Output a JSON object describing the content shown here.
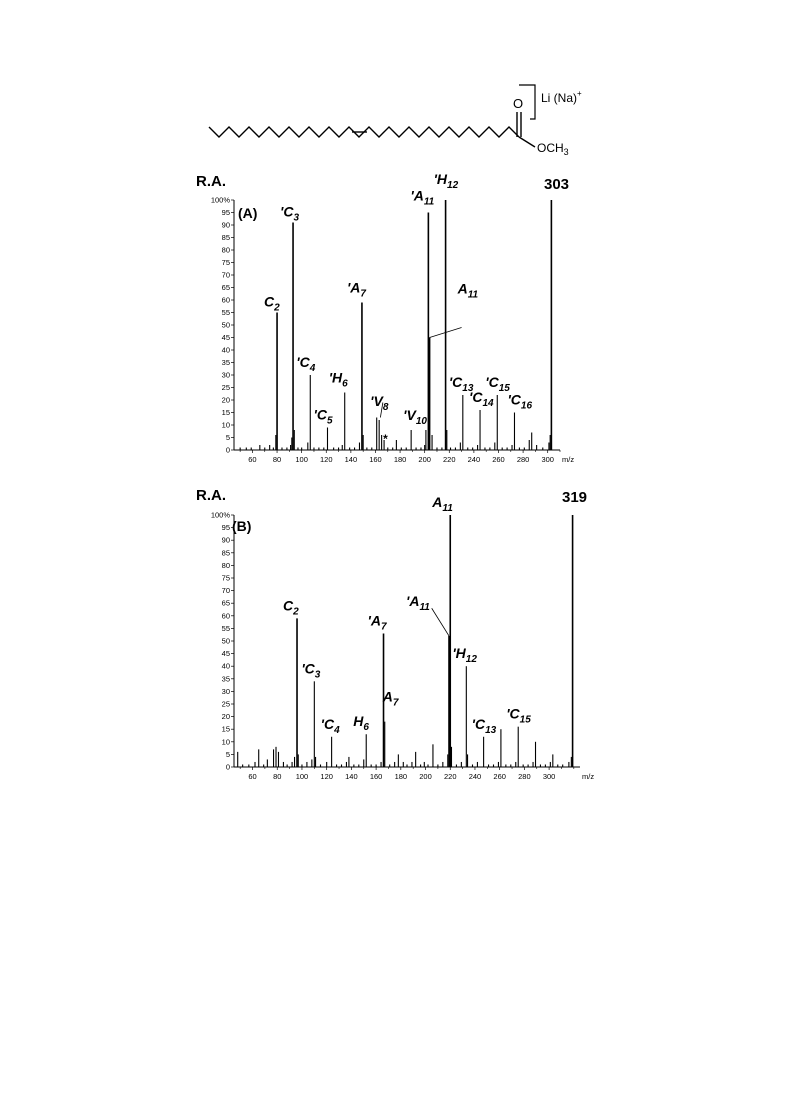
{
  "structure": {
    "cation_label": "Li (Na)",
    "cation_charge": "+",
    "carbonyl_O": "O",
    "ester_group": "OCH",
    "ester_sub": "3"
  },
  "chart_data": [
    {
      "type": "bar",
      "y_axis_title": "R.A.",
      "panel_label": "(A)",
      "parent_label": "303",
      "x_unit": "m/z",
      "xlim": [
        45,
        310
      ],
      "ylim": [
        0,
        100
      ],
      "x_ticks": [
        60,
        80,
        100,
        120,
        140,
        160,
        180,
        200,
        220,
        240,
        260,
        280,
        300
      ],
      "y_ticks": [
        0,
        5,
        10,
        15,
        20,
        25,
        30,
        35,
        40,
        45,
        50,
        55,
        60,
        65,
        70,
        75,
        80,
        85,
        90,
        95,
        100
      ],
      "peaks": [
        {
          "x": 50,
          "y": 1
        },
        {
          "x": 55,
          "y": 1
        },
        {
          "x": 59,
          "y": 1
        },
        {
          "x": 66,
          "y": 2
        },
        {
          "x": 70,
          "y": 1
        },
        {
          "x": 74,
          "y": 2
        },
        {
          "x": 77,
          "y": 1
        },
        {
          "x": 79,
          "y": 6
        },
        {
          "x": 80,
          "y": 55
        },
        {
          "x": 84,
          "y": 1
        },
        {
          "x": 88,
          "y": 1
        },
        {
          "x": 91,
          "y": 2
        },
        {
          "x": 92,
          "y": 5
        },
        {
          "x": 93,
          "y": 91
        },
        {
          "x": 94,
          "y": 8
        },
        {
          "x": 97,
          "y": 1
        },
        {
          "x": 100,
          "y": 1
        },
        {
          "x": 105,
          "y": 3
        },
        {
          "x": 107,
          "y": 30
        },
        {
          "x": 110,
          "y": 1
        },
        {
          "x": 114,
          "y": 1
        },
        {
          "x": 118,
          "y": 1
        },
        {
          "x": 121,
          "y": 9
        },
        {
          "x": 126,
          "y": 1
        },
        {
          "x": 130,
          "y": 1
        },
        {
          "x": 133,
          "y": 2
        },
        {
          "x": 135,
          "y": 23
        },
        {
          "x": 139,
          "y": 1
        },
        {
          "x": 143,
          "y": 1
        },
        {
          "x": 147,
          "y": 3
        },
        {
          "x": 149,
          "y": 59
        },
        {
          "x": 150,
          "y": 6
        },
        {
          "x": 153,
          "y": 1
        },
        {
          "x": 157,
          "y": 1
        },
        {
          "x": 161,
          "y": 13
        },
        {
          "x": 163,
          "y": 12
        },
        {
          "x": 165,
          "y": 6
        },
        {
          "x": 167,
          "y": 4
        },
        {
          "x": 170,
          "y": 1
        },
        {
          "x": 174,
          "y": 1
        },
        {
          "x": 177,
          "y": 4
        },
        {
          "x": 181,
          "y": 1
        },
        {
          "x": 185,
          "y": 1
        },
        {
          "x": 189,
          "y": 8
        },
        {
          "x": 193,
          "y": 1
        },
        {
          "x": 197,
          "y": 1
        },
        {
          "x": 200,
          "y": 2
        },
        {
          "x": 201,
          "y": 8
        },
        {
          "x": 203,
          "y": 95
        },
        {
          "x": 204,
          "y": 45
        },
        {
          "x": 206,
          "y": 6
        },
        {
          "x": 210,
          "y": 1
        },
        {
          "x": 214,
          "y": 1
        },
        {
          "x": 217,
          "y": 100
        },
        {
          "x": 218,
          "y": 8
        },
        {
          "x": 221,
          "y": 1
        },
        {
          "x": 225,
          "y": 1
        },
        {
          "x": 229,
          "y": 3
        },
        {
          "x": 231,
          "y": 22
        },
        {
          "x": 235,
          "y": 1
        },
        {
          "x": 239,
          "y": 1
        },
        {
          "x": 243,
          "y": 2
        },
        {
          "x": 245,
          "y": 16
        },
        {
          "x": 249,
          "y": 1
        },
        {
          "x": 253,
          "y": 1
        },
        {
          "x": 257,
          "y": 3
        },
        {
          "x": 259,
          "y": 22
        },
        {
          "x": 263,
          "y": 1
        },
        {
          "x": 267,
          "y": 1
        },
        {
          "x": 271,
          "y": 2
        },
        {
          "x": 273,
          "y": 15
        },
        {
          "x": 277,
          "y": 1
        },
        {
          "x": 281,
          "y": 1
        },
        {
          "x": 285,
          "y": 4
        },
        {
          "x": 287,
          "y": 7
        },
        {
          "x": 291,
          "y": 2
        },
        {
          "x": 296,
          "y": 1
        },
        {
          "x": 301,
          "y": 3
        },
        {
          "x": 302,
          "y": 6
        },
        {
          "x": 303,
          "y": 100
        }
      ],
      "annotations": [
        {
          "x": 80,
          "y": 55,
          "prime": "",
          "letter": "C",
          "sub": "2"
        },
        {
          "x": 93,
          "y": 91,
          "prime": "'",
          "letter": "C",
          "sub": "3"
        },
        {
          "x": 107,
          "y": 30,
          "prime": "'",
          "letter": "C",
          "sub": "4"
        },
        {
          "x": 121,
          "y": 9,
          "prime": "'",
          "letter": "C",
          "sub": "5"
        },
        {
          "x": 135,
          "y": 23,
          "prime": "'",
          "letter": "H",
          "sub": "6"
        },
        {
          "x": 149,
          "y": 59,
          "prime": "'",
          "letter": "A",
          "sub": "7"
        },
        {
          "x": 163,
          "y": 12,
          "prime": "'",
          "letter": "V",
          "sub": "8"
        },
        {
          "x": 165,
          "y": 6,
          "prime": "",
          "letter": "*",
          "sub": ""
        },
        {
          "x": 189,
          "y": 8,
          "prime": "'",
          "letter": "V",
          "sub": "10"
        },
        {
          "x": 203,
          "y": 95,
          "prime": "'",
          "letter": "A",
          "sub": "11"
        },
        {
          "x": 217,
          "y": 100,
          "prime": "'",
          "letter": "H",
          "sub": "12"
        },
        {
          "x": 204,
          "y": 45,
          "prime": "",
          "letter": "A",
          "sub": "11"
        },
        {
          "x": 231,
          "y": 22,
          "prime": "'",
          "letter": "C",
          "sub": "13"
        },
        {
          "x": 245,
          "y": 16,
          "prime": "'",
          "letter": "C",
          "sub": "14"
        },
        {
          "x": 259,
          "y": 22,
          "prime": "'",
          "letter": "C",
          "sub": "15"
        },
        {
          "x": 273,
          "y": 15,
          "prime": "'",
          "letter": "C",
          "sub": "16"
        }
      ]
    },
    {
      "type": "bar",
      "y_axis_title": "R.A.",
      "panel_label": "(B)",
      "parent_label": "319",
      "x_unit": "m/z",
      "xlim": [
        45,
        325
      ],
      "ylim": [
        0,
        100
      ],
      "x_ticks": [
        60,
        80,
        100,
        120,
        140,
        160,
        180,
        200,
        220,
        240,
        260,
        280,
        300
      ],
      "y_ticks": [
        0,
        5,
        10,
        15,
        20,
        25,
        30,
        35,
        40,
        45,
        50,
        55,
        60,
        65,
        70,
        75,
        80,
        85,
        90,
        95,
        100
      ],
      "peaks": [
        {
          "x": 48,
          "y": 6
        },
        {
          "x": 52,
          "y": 1
        },
        {
          "x": 57,
          "y": 1
        },
        {
          "x": 62,
          "y": 2
        },
        {
          "x": 65,
          "y": 7
        },
        {
          "x": 69,
          "y": 1
        },
        {
          "x": 72,
          "y": 3
        },
        {
          "x": 77,
          "y": 7
        },
        {
          "x": 79,
          "y": 8
        },
        {
          "x": 81,
          "y": 6
        },
        {
          "x": 85,
          "y": 2
        },
        {
          "x": 88,
          "y": 1
        },
        {
          "x": 92,
          "y": 2
        },
        {
          "x": 94,
          "y": 4
        },
        {
          "x": 96,
          "y": 59
        },
        {
          "x": 97,
          "y": 5
        },
        {
          "x": 100,
          "y": 1
        },
        {
          "x": 104,
          "y": 2
        },
        {
          "x": 108,
          "y": 3
        },
        {
          "x": 110,
          "y": 34
        },
        {
          "x": 111,
          "y": 4
        },
        {
          "x": 115,
          "y": 1
        },
        {
          "x": 120,
          "y": 2
        },
        {
          "x": 124,
          "y": 12
        },
        {
          "x": 128,
          "y": 1
        },
        {
          "x": 132,
          "y": 1
        },
        {
          "x": 136,
          "y": 2
        },
        {
          "x": 138,
          "y": 4
        },
        {
          "x": 142,
          "y": 1
        },
        {
          "x": 146,
          "y": 1
        },
        {
          "x": 150,
          "y": 3
        },
        {
          "x": 152,
          "y": 13
        },
        {
          "x": 156,
          "y": 1
        },
        {
          "x": 160,
          "y": 1
        },
        {
          "x": 164,
          "y": 2
        },
        {
          "x": 166,
          "y": 53
        },
        {
          "x": 167,
          "y": 18
        },
        {
          "x": 171,
          "y": 1
        },
        {
          "x": 175,
          "y": 2
        },
        {
          "x": 178,
          "y": 5
        },
        {
          "x": 182,
          "y": 2
        },
        {
          "x": 185,
          "y": 1
        },
        {
          "x": 189,
          "y": 2
        },
        {
          "x": 192,
          "y": 6
        },
        {
          "x": 196,
          "y": 1
        },
        {
          "x": 199,
          "y": 2
        },
        {
          "x": 202,
          "y": 1
        },
        {
          "x": 206,
          "y": 9
        },
        {
          "x": 210,
          "y": 1
        },
        {
          "x": 214,
          "y": 2
        },
        {
          "x": 218,
          "y": 5
        },
        {
          "x": 219,
          "y": 52
        },
        {
          "x": 220,
          "y": 100
        },
        {
          "x": 221,
          "y": 8
        },
        {
          "x": 225,
          "y": 1
        },
        {
          "x": 229,
          "y": 2
        },
        {
          "x": 233,
          "y": 40
        },
        {
          "x": 234,
          "y": 5
        },
        {
          "x": 238,
          "y": 1
        },
        {
          "x": 242,
          "y": 2
        },
        {
          "x": 247,
          "y": 12
        },
        {
          "x": 251,
          "y": 1
        },
        {
          "x": 255,
          "y": 1
        },
        {
          "x": 259,
          "y": 2
        },
        {
          "x": 261,
          "y": 15
        },
        {
          "x": 265,
          "y": 1
        },
        {
          "x": 269,
          "y": 1
        },
        {
          "x": 273,
          "y": 2
        },
        {
          "x": 275,
          "y": 16
        },
        {
          "x": 279,
          "y": 1
        },
        {
          "x": 283,
          "y": 1
        },
        {
          "x": 287,
          "y": 2
        },
        {
          "x": 289,
          "y": 10
        },
        {
          "x": 293,
          "y": 1
        },
        {
          "x": 297,
          "y": 1
        },
        {
          "x": 301,
          "y": 2
        },
        {
          "x": 303,
          "y": 5
        },
        {
          "x": 307,
          "y": 1
        },
        {
          "x": 311,
          "y": 1
        },
        {
          "x": 316,
          "y": 2
        },
        {
          "x": 318,
          "y": 4
        },
        {
          "x": 319,
          "y": 100
        }
      ],
      "annotations": [
        {
          "x": 96,
          "y": 59,
          "prime": "",
          "letter": "C",
          "sub": "2"
        },
        {
          "x": 110,
          "y": 34,
          "prime": "'",
          "letter": "C",
          "sub": "3"
        },
        {
          "x": 124,
          "y": 12,
          "prime": "'",
          "letter": "C",
          "sub": "4"
        },
        {
          "x": 152,
          "y": 13,
          "prime": "",
          "letter": "H",
          "sub": "6"
        },
        {
          "x": 166,
          "y": 53,
          "prime": "'",
          "letter": "A",
          "sub": "7"
        },
        {
          "x": 167,
          "y": 18,
          "prime": "",
          "letter": "A",
          "sub": "7"
        },
        {
          "x": 220,
          "y": 100,
          "prime": "",
          "letter": "A",
          "sub": "11"
        },
        {
          "x": 219,
          "y": 52,
          "prime": "'",
          "letter": "A",
          "sub": "11"
        },
        {
          "x": 233,
          "y": 40,
          "prime": "'",
          "letter": "H",
          "sub": "12"
        },
        {
          "x": 247,
          "y": 12,
          "prime": "'",
          "letter": "C",
          "sub": "13"
        },
        {
          "x": 275,
          "y": 16,
          "prime": "'",
          "letter": "C",
          "sub": "15"
        }
      ]
    }
  ]
}
